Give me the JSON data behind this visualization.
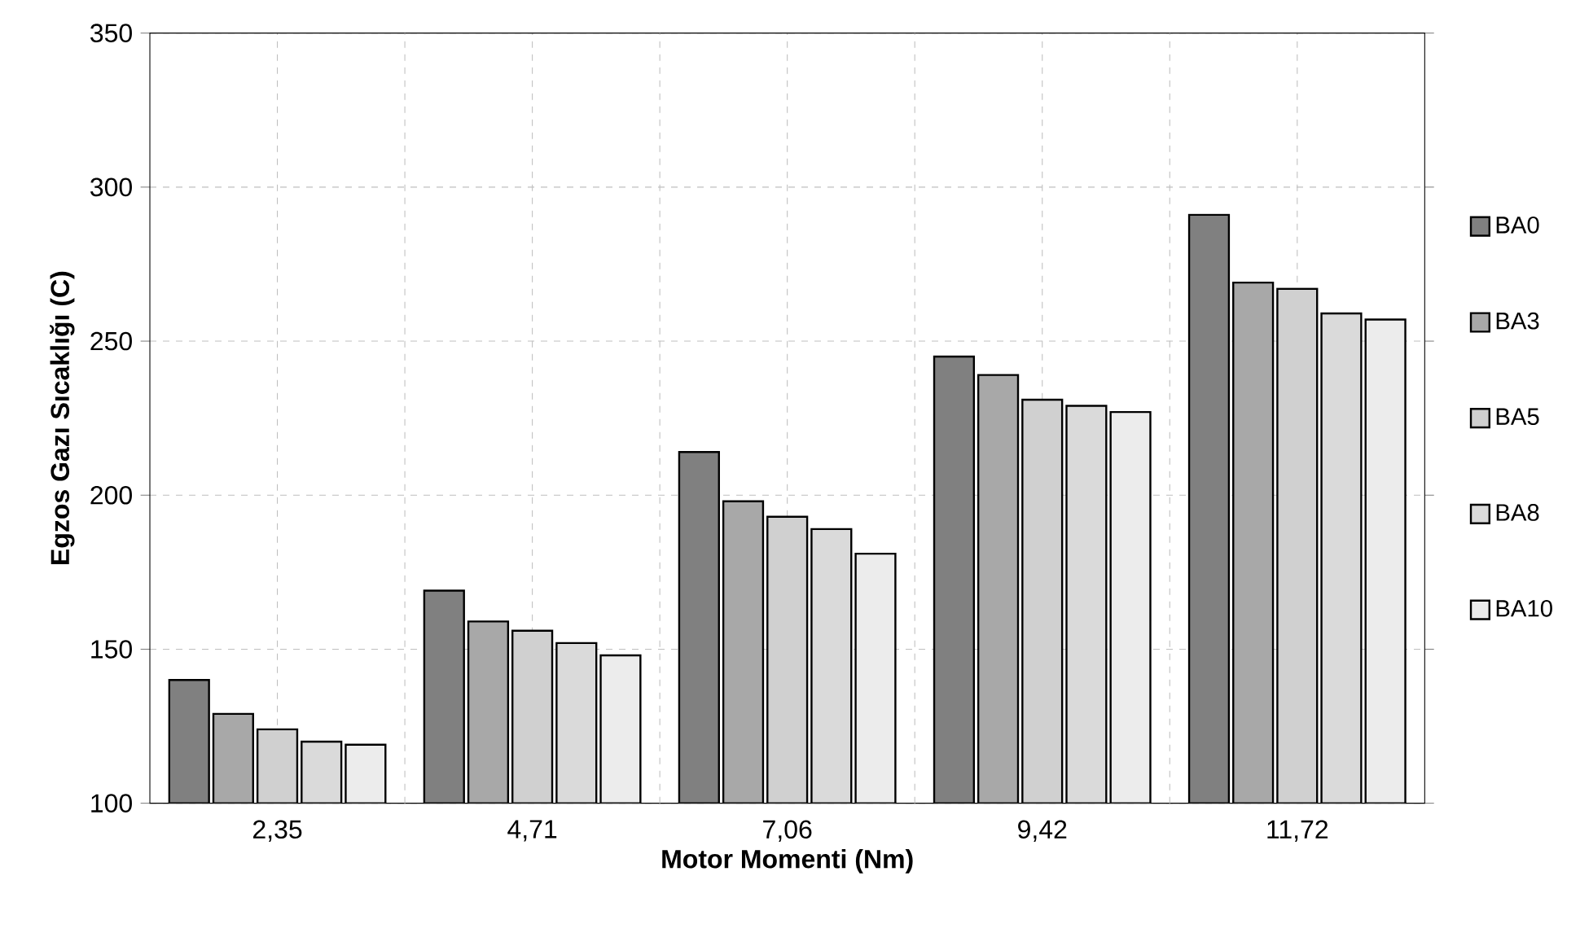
{
  "chart_data": {
    "type": "bar",
    "xlabel": "Motor Momenti (Nm)",
    "ylabel": "Egzos Gazı Sıcaklığı (C)",
    "categories": [
      "2,35",
      "4,71",
      "7,06",
      "9,42",
      "11,72"
    ],
    "series": [
      {
        "name": "BA0",
        "color": "#808080",
        "values": [
          140,
          169,
          214,
          245,
          291
        ]
      },
      {
        "name": "BA3",
        "color": "#a8a8a8",
        "values": [
          129,
          159,
          198,
          239,
          269
        ]
      },
      {
        "name": "BA5",
        "color": "#d0d0d0",
        "values": [
          124,
          156,
          193,
          231,
          267
        ]
      },
      {
        "name": "BA8",
        "color": "#dadada",
        "values": [
          120,
          152,
          189,
          229,
          259
        ]
      },
      {
        "name": "BA10",
        "color": "#ececec",
        "values": [
          119,
          148,
          181,
          227,
          257
        ]
      }
    ],
    "ylim": [
      100,
      350
    ],
    "yticks": [
      100,
      150,
      200,
      250,
      300,
      350
    ],
    "grid": true,
    "legend": "right"
  }
}
